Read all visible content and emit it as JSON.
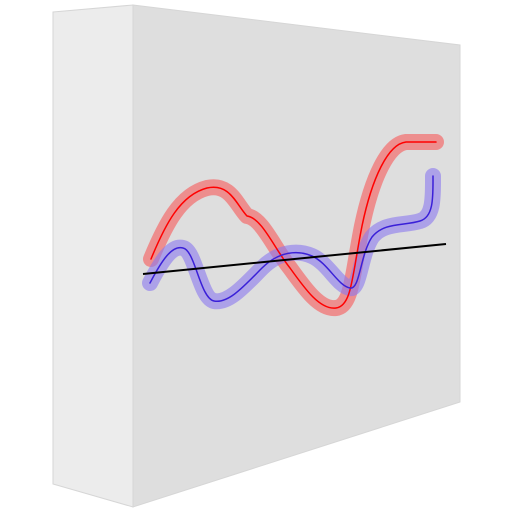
{
  "figure": {
    "box": {
      "side_color": "#ececec",
      "front_color": "#dedede",
      "edge_color": "#d6d6d6"
    },
    "curves": [
      {
        "name": "red-wave",
        "color": "#ff0000",
        "halo_color": "#f08080",
        "halo_opacity": 0.85
      },
      {
        "name": "blue-wave",
        "color": "#3a20d8",
        "halo_color": "#8a78ee",
        "halo_opacity": 0.6
      },
      {
        "name": "trend-line",
        "color": "#000000"
      }
    ]
  }
}
